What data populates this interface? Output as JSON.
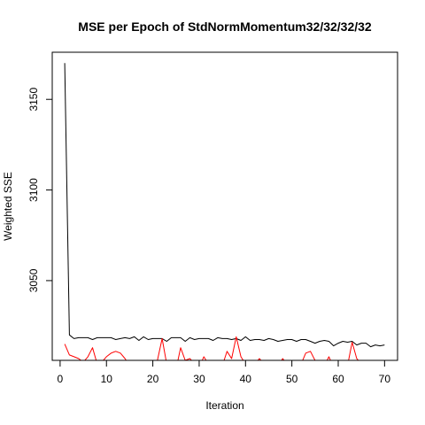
{
  "chart_data": {
    "type": "line",
    "title": "MSE per Epoch of StdNormMomentum32/32/32/32",
    "xlabel": "Iteration",
    "ylabel": "Weighted SSE",
    "xlim": [
      -1.7,
      72.8
    ],
    "ylim": [
      3006,
      3176
    ],
    "xticks": [
      0,
      10,
      20,
      30,
      40,
      50,
      60,
      70
    ],
    "yticks": [
      3050,
      3100,
      3150
    ],
    "grid": false,
    "legend": "none",
    "colors": {
      "black_series": "#000000",
      "red_series": "#ff0000"
    },
    "series": [
      {
        "color": "#000000",
        "x": [
          1,
          2,
          3,
          4,
          5,
          6,
          7,
          8,
          9,
          10,
          11,
          12,
          13,
          14,
          15,
          16,
          17,
          18,
          19,
          20,
          21,
          22,
          23,
          24,
          25,
          26,
          27,
          28,
          29,
          30,
          31,
          32,
          33,
          34,
          35,
          36,
          37,
          38,
          39,
          40,
          41,
          42,
          43,
          44,
          45,
          46,
          47,
          48,
          49,
          50,
          51,
          52,
          53,
          54,
          55,
          56,
          57,
          58,
          59,
          60,
          61,
          62,
          63,
          64,
          65,
          66,
          67,
          68,
          69,
          70
        ],
        "values": [
          3170,
          3020,
          3018,
          3018.5,
          3018.5,
          3018.5,
          3017.5,
          3018.5,
          3018.5,
          3018.5,
          3018.5,
          3017.5,
          3018,
          3018.5,
          3018,
          3019,
          3017,
          3019,
          3017.5,
          3018,
          3018,
          3018,
          3016.5,
          3018.5,
          3018.5,
          3018.5,
          3016.5,
          3018.5,
          3017.5,
          3018,
          3018,
          3018,
          3017,
          3018.5,
          3018,
          3018,
          3017.5,
          3018,
          3017,
          3019,
          3017,
          3017.5,
          3017.5,
          3017,
          3018,
          3017.5,
          3016.5,
          3017,
          3017.5,
          3017.5,
          3016.5,
          3017.5,
          3017.5,
          3016.5,
          3015.5,
          3016.5,
          3017,
          3016.5,
          3014,
          3015.5,
          3016.5,
          3016,
          3016.5,
          3014.5,
          3015.5,
          3015.5,
          3013.5,
          3014.5,
          3014,
          3014.5
        ]
      },
      {
        "color": "#ff0000",
        "x": [
          1,
          2,
          3,
          4,
          5,
          6,
          7,
          8,
          9,
          10,
          11,
          12,
          13,
          14,
          15,
          16,
          17,
          18,
          19,
          20,
          21,
          22,
          23,
          24,
          25,
          26,
          27,
          28,
          29,
          30,
          31,
          32,
          33,
          34,
          35,
          36,
          37,
          38,
          39,
          40,
          41,
          42,
          43,
          44,
          45,
          46,
          47,
          48,
          49,
          50,
          51,
          52,
          53,
          54,
          55,
          56,
          57,
          58,
          59,
          60,
          61,
          62,
          63,
          64,
          65,
          66,
          67,
          68,
          69,
          70
        ],
        "values": [
          3015,
          3009,
          3008,
          3007,
          3005,
          3008,
          3013,
          3004,
          3005,
          3008,
          3010,
          3011,
          3010,
          3007,
          3003,
          3004,
          3004,
          3003,
          3003,
          3002,
          3006,
          3018,
          3004,
          3002,
          3001,
          3013,
          3006,
          3007,
          3004,
          3002,
          3008,
          3004,
          3004,
          3002,
          3003,
          3011,
          3007,
          3019,
          3008,
          3004,
          3003,
          3004,
          3007,
          3004,
          3003,
          3004,
          3002,
          3007,
          3004,
          3002,
          3004,
          3004,
          3010,
          3011,
          3006,
          3002,
          3003,
          3008,
          3002,
          3003,
          3002,
          3003,
          3016,
          3007,
          3004,
          3003,
          3002,
          3004,
          3002,
          3003
        ]
      }
    ]
  }
}
